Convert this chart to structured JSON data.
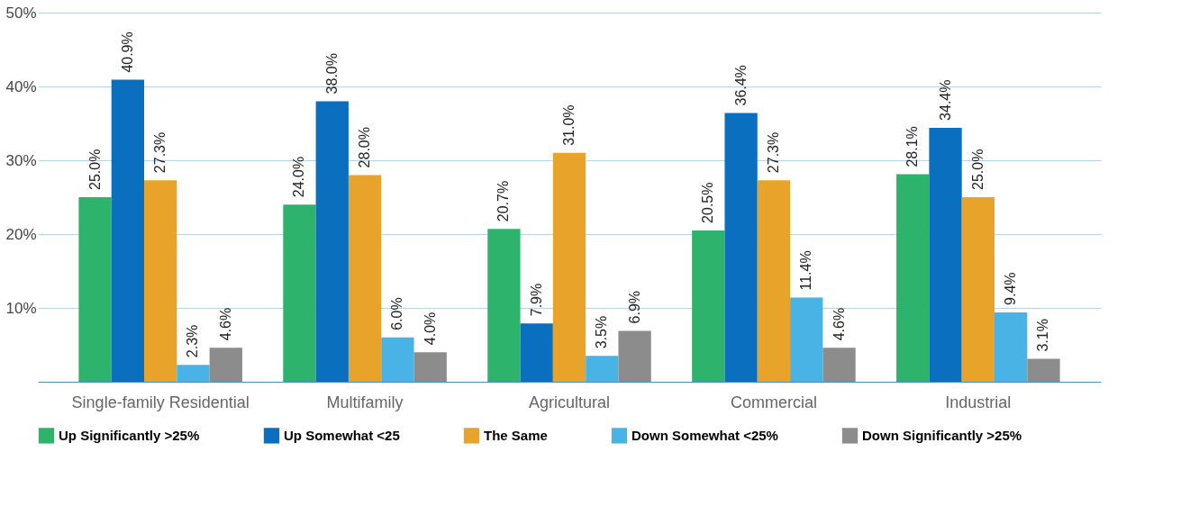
{
  "chart_data": {
    "type": "bar",
    "categories": [
      "Single-family Residential",
      "Multifamily",
      "Agricultural",
      "Commercial",
      "Industrial"
    ],
    "series": [
      {
        "name": "Up Significantly >25%",
        "color": "#2db36b",
        "values": [
          25.0,
          24.0,
          20.7,
          20.5,
          28.1
        ],
        "value_labels": [
          "25.0%",
          "24.0%",
          "20.7%",
          "20.5%",
          "28.1%"
        ]
      },
      {
        "name": "Up Somewhat <25",
        "color": "#0a6fbf",
        "values": [
          40.9,
          38.0,
          7.9,
          36.4,
          34.4
        ],
        "value_labels": [
          "40.9%",
          "38.0%",
          "7.9%",
          "36.4%",
          "34.4%"
        ]
      },
      {
        "name": "The Same",
        "color": "#e8a42a",
        "values": [
          27.3,
          28.0,
          31.0,
          27.3,
          25.0
        ],
        "value_labels": [
          "27.3%",
          "28.0%",
          "31.0%",
          "27.3%",
          "25.0%"
        ]
      },
      {
        "name": "Down Somewhat <25%",
        "color": "#4ab3e6",
        "values": [
          2.3,
          6.0,
          3.5,
          11.4,
          9.4
        ],
        "value_labels": [
          "2.3%",
          "6.0%",
          "3.5%",
          "11.4%",
          "9.4%"
        ]
      },
      {
        "name": "Down Significantly >25%",
        "color": "#8c8c8c",
        "values": [
          4.6,
          4.0,
          6.9,
          4.6,
          3.1
        ],
        "value_labels": [
          "4.6%",
          "4.0%",
          "6.9%",
          "4.6%",
          "3.1%"
        ]
      }
    ],
    "ylim": [
      0,
      50
    ],
    "yticks": [
      {
        "value": 10,
        "label": "10%"
      },
      {
        "value": 20,
        "label": "20%"
      },
      {
        "value": 30,
        "label": "30%"
      },
      {
        "value": 40,
        "label": "40%"
      },
      {
        "value": 50,
        "label": "50%"
      }
    ],
    "grid": "y",
    "legend": "bottom"
  }
}
